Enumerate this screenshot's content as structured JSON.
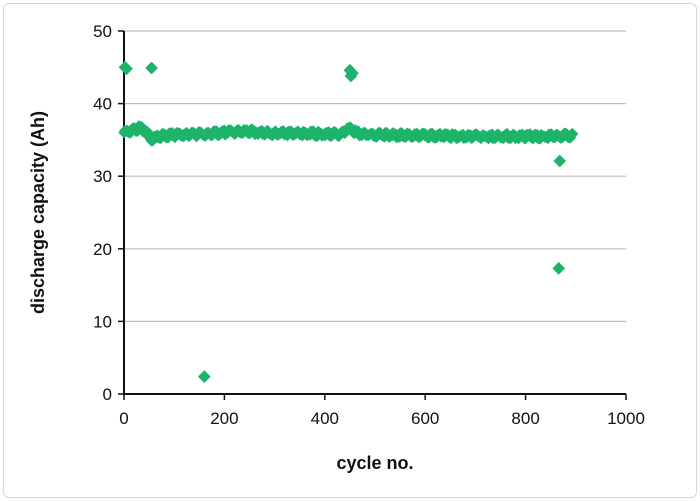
{
  "chart_data": {
    "type": "scatter",
    "title": "",
    "xlabel": "cycle no.",
    "ylabel": "discharge capacity (Ah)",
    "xlim": [
      0,
      1000
    ],
    "ylim": [
      0,
      50
    ],
    "xticks": [
      0,
      200,
      400,
      600,
      800,
      1000
    ],
    "yticks": [
      0,
      10,
      20,
      30,
      40,
      50
    ],
    "grid": "horizontal",
    "legend": "none",
    "marker": "diamond",
    "color": "#1db36b",
    "series": [
      {
        "points_dense_band": [
          [
            0,
            36.0
          ],
          [
            10,
            36.2
          ],
          [
            20,
            36.4
          ],
          [
            30,
            36.6
          ],
          [
            40,
            36.3
          ],
          [
            50,
            35.6
          ],
          [
            55,
            35.0
          ],
          [
            60,
            35.4
          ],
          [
            80,
            35.6
          ],
          [
            100,
            35.7
          ],
          [
            120,
            35.7
          ],
          [
            150,
            35.8
          ],
          [
            180,
            35.9
          ],
          [
            200,
            36.0
          ],
          [
            220,
            36.1
          ],
          [
            250,
            36.2
          ],
          [
            270,
            36.0
          ],
          [
            300,
            35.9
          ],
          [
            330,
            35.9
          ],
          [
            360,
            35.9
          ],
          [
            400,
            35.8
          ],
          [
            430,
            35.8
          ],
          [
            450,
            36.5
          ],
          [
            470,
            35.8
          ],
          [
            500,
            35.7
          ],
          [
            530,
            35.7
          ],
          [
            560,
            35.6
          ],
          [
            600,
            35.6
          ],
          [
            630,
            35.6
          ],
          [
            660,
            35.5
          ],
          [
            700,
            35.5
          ],
          [
            730,
            35.5
          ],
          [
            760,
            35.5
          ],
          [
            800,
            35.5
          ],
          [
            830,
            35.5
          ],
          [
            860,
            35.5
          ],
          [
            880,
            35.6
          ],
          [
            895,
            35.5
          ]
        ],
        "outliers": [
          [
            2,
            45.0
          ],
          [
            5,
            44.8
          ],
          [
            55,
            44.9
          ],
          [
            160,
            2.4
          ],
          [
            450,
            44.6
          ],
          [
            455,
            44.2
          ],
          [
            452,
            43.8
          ],
          [
            868,
            32.1
          ],
          [
            866,
            17.3
          ]
        ]
      }
    ]
  }
}
